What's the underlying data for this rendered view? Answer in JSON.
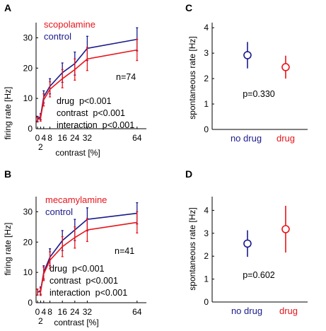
{
  "colors": {
    "drug": "#e8141a",
    "control": "#1a1a8c"
  },
  "chart_data": [
    {
      "panel": "A",
      "type": "line",
      "xlabel": "contrast [%]",
      "ylabel": "firing rate [Hz]",
      "xlim": [
        0,
        70
      ],
      "ylim": [
        0,
        35
      ],
      "xticks": [
        0,
        4,
        8,
        16,
        24,
        32,
        64
      ],
      "xtick_labels": [
        "0",
        "4",
        "8",
        "16",
        "24",
        "32",
        "64"
      ],
      "xtick_extra": {
        "value": 2,
        "label": "2"
      },
      "yticks": [
        0,
        10,
        20,
        30
      ],
      "ytick_labels": [
        "0",
        "10",
        "20",
        "30"
      ],
      "x": [
        0,
        2,
        4,
        8,
        16,
        24,
        32,
        64
      ],
      "series": [
        {
          "name": "control",
          "color": "#1a1a8c",
          "values": [
            3.3,
            4.0,
            10.5,
            14.0,
            18.5,
            21.5,
            26.5,
            29.5
          ],
          "err": [
            0.8,
            1.0,
            2.0,
            2.5,
            3.2,
            3.8,
            4.0,
            3.8
          ]
        },
        {
          "name": "scopolamine",
          "color": "#e8141a",
          "values": [
            3.0,
            3.5,
            9.5,
            13.0,
            16.5,
            19.5,
            23.0,
            26.0
          ],
          "err": [
            0.8,
            1.0,
            2.0,
            2.5,
            3.0,
            3.5,
            3.8,
            3.5
          ]
        }
      ],
      "n_label": "n=74",
      "stats": [
        "drug  p<0.001",
        "contrast  p<0.001",
        "interaction  p<0.001"
      ]
    },
    {
      "panel": "B",
      "type": "line",
      "xlabel": "contrast [%]",
      "ylabel": "firing rate [Hz]",
      "xlim": [
        0,
        70
      ],
      "ylim": [
        0,
        35
      ],
      "xticks": [
        0,
        4,
        8,
        16,
        24,
        32,
        64
      ],
      "xtick_labels": [
        "0",
        "4",
        "8",
        "16",
        "24",
        "32",
        "64"
      ],
      "xtick_extra": {
        "value": 2,
        "label": "2"
      },
      "yticks": [
        0,
        10,
        20,
        30
      ],
      "ytick_labels": [
        "0",
        "10",
        "20",
        "30"
      ],
      "x": [
        0,
        2,
        4,
        8,
        16,
        24,
        32,
        64
      ],
      "series": [
        {
          "name": "control",
          "color": "#1a1a8c",
          "values": [
            3.5,
            4.0,
            10.0,
            15.0,
            20.5,
            24.0,
            27.5,
            29.5
          ],
          "err": [
            1.0,
            1.2,
            2.2,
            2.8,
            3.3,
            3.5,
            3.8,
            3.5
          ]
        },
        {
          "name": "mecamylamine",
          "color": "#e8141a",
          "values": [
            3.5,
            3.6,
            9.5,
            14.0,
            18.5,
            21.5,
            24.0,
            26.5
          ],
          "err": [
            1.0,
            1.2,
            2.2,
            2.8,
            3.3,
            3.5,
            3.8,
            3.5
          ]
        }
      ],
      "n_label": "n=41",
      "stats": [
        "drug  p<0.001",
        "contrast  p<0.001",
        "interaction  p<0.001"
      ]
    },
    {
      "panel": "C",
      "type": "scatter",
      "ylabel": "spontaneous rate [Hz]",
      "ylim": [
        0,
        4.2
      ],
      "yticks": [
        0,
        1,
        2,
        3,
        4
      ],
      "ytick_labels": [
        "0",
        "1",
        "2",
        "3",
        "4"
      ],
      "categories": [
        "no drug",
        "drug"
      ],
      "values": [
        2.92,
        2.45
      ],
      "err": [
        0.52,
        0.45
      ],
      "colors": [
        "#1a1a8c",
        "#e8141a"
      ],
      "p_label": "p=0.330"
    },
    {
      "panel": "D",
      "type": "scatter",
      "ylabel": "spontaneous rate [Hz]",
      "ylim": [
        0,
        4.6
      ],
      "yticks": [
        0,
        1,
        2,
        3,
        4
      ],
      "ytick_labels": [
        "0",
        "1",
        "2",
        "3",
        "4"
      ],
      "categories": [
        "no drug",
        "drug"
      ],
      "values": [
        2.55,
        3.18
      ],
      "err": [
        0.58,
        1.02
      ],
      "colors": [
        "#1a1a8c",
        "#e8141a"
      ],
      "p_label": "p=0.602"
    }
  ]
}
